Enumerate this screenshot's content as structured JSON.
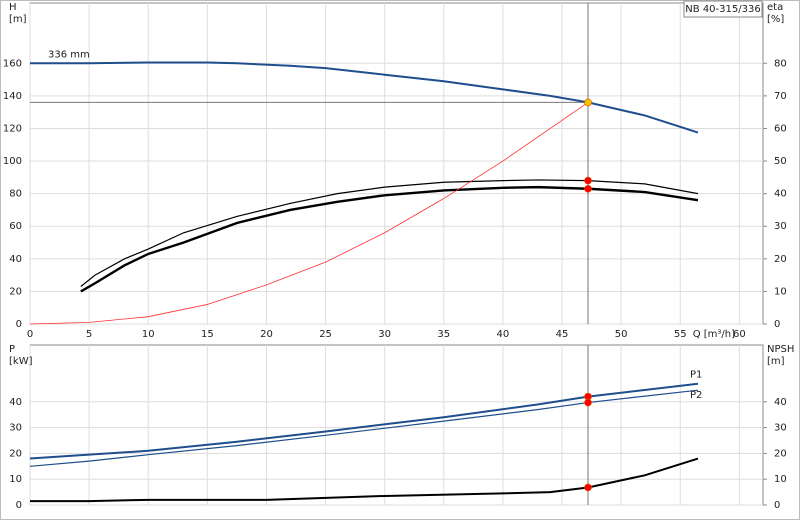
{
  "chart_data": [
    {
      "type": "line",
      "title": "NB 40-315/336",
      "xlabel": "Q [m³/h]",
      "ylabel": [
        "H",
        "[m]"
      ],
      "y2label": [
        "eta",
        "[%]"
      ],
      "xlim": [
        0,
        62
      ],
      "xticks": [
        0,
        5,
        10,
        15,
        20,
        25,
        30,
        35,
        40,
        45,
        50,
        55,
        60
      ],
      "show_xtick_labels": true,
      "ylim": [
        0,
        197
      ],
      "yticks": [
        0,
        20,
        40,
        60,
        80,
        100,
        120,
        140,
        160
      ],
      "y2lim": [
        0,
        98.5
      ],
      "y2ticks": [
        0,
        10,
        20,
        30,
        40,
        50,
        60,
        70,
        80
      ],
      "grid": true,
      "series": [
        {
          "name": "336 mm",
          "label_at": "start",
          "color": "#1f4e8c",
          "width": 2,
          "x": [
            0,
            5,
            10,
            15,
            17.5,
            22,
            25,
            30,
            35,
            40,
            44,
            47.2,
            52,
            56.5
          ],
          "values": [
            160,
            160,
            160.5,
            160.5,
            160,
            158.5,
            157,
            153,
            149,
            144,
            140,
            136,
            128,
            117.5
          ]
        },
        {
          "color": "#000000",
          "width": 1.2,
          "axis": "y2",
          "x": [
            4.3,
            5.5,
            8,
            10,
            13,
            17.5,
            22,
            26,
            30,
            35,
            40,
            43,
            47.2,
            52,
            56.5
          ],
          "values": [
            11.5,
            15,
            20,
            23,
            28,
            33,
            37,
            40,
            42,
            43.5,
            44,
            44.2,
            44,
            43,
            40
          ]
        },
        {
          "color": "#000000",
          "width": 2.4,
          "axis": "y2",
          "x": [
            4.3,
            5.5,
            8,
            10,
            13,
            17.5,
            22,
            26,
            30,
            35,
            40,
            43,
            47.2,
            52,
            56.5
          ],
          "values": [
            10,
            12.5,
            18,
            21.5,
            25,
            31,
            35,
            37.5,
            39.5,
            41,
            41.8,
            42,
            41.5,
            40.5,
            38
          ]
        },
        {
          "color": "#ff3030",
          "width": 0.8,
          "x": [
            0,
            5,
            10,
            15,
            20,
            25,
            30,
            35,
            40,
            44,
            47.2
          ],
          "values": [
            0,
            1,
            4.5,
            12,
            24,
            38,
            56,
            77,
            100,
            120,
            136
          ]
        }
      ],
      "duty_points": [
        {
          "x": 47.2,
          "y": 136,
          "color": "#f5c400",
          "crosshair": true
        },
        {
          "x": 47.2,
          "y": 44,
          "axis": "y2",
          "color": "#ff0000"
        },
        {
          "x": 47.2,
          "y": 41.5,
          "axis": "y2",
          "color": "#ff0000"
        }
      ]
    },
    {
      "type": "line",
      "ylabel": [
        "P",
        "[kW]"
      ],
      "y2label": [
        "NPSH",
        "[m]"
      ],
      "xlim": [
        0,
        62
      ],
      "xticks": [
        0,
        5,
        10,
        15,
        20,
        25,
        30,
        35,
        40,
        45,
        50,
        55,
        60
      ],
      "show_xtick_labels": false,
      "ylim": [
        0,
        62
      ],
      "yticks": [
        0,
        10,
        20,
        30,
        40
      ],
      "y2lim": [
        0,
        62
      ],
      "y2ticks": [
        0,
        10,
        20,
        30,
        40
      ],
      "grid": true,
      "series": [
        {
          "name": "P1",
          "label_at": "end",
          "color": "#1f4e8c",
          "width": 2,
          "x": [
            0,
            5,
            10,
            17.5,
            25,
            35,
            43,
            47.2,
            56.5
          ],
          "values": [
            18,
            19.5,
            21,
            24.5,
            28.5,
            34,
            39,
            42,
            47
          ]
        },
        {
          "name": "P2",
          "label_at": "end-below",
          "color": "#1f4e8c",
          "width": 1.2,
          "x": [
            0,
            5,
            10,
            17.5,
            25,
            35,
            43,
            47.2,
            56.5
          ],
          "values": [
            15,
            17,
            19.5,
            23,
            27,
            32.5,
            37,
            39.7,
            44.5
          ]
        },
        {
          "color": "#000000",
          "width": 2,
          "axis": "y2",
          "x": [
            0,
            5,
            10,
            20,
            30,
            40,
            44,
            47.2,
            52,
            56.5
          ],
          "values": [
            1.5,
            1.5,
            2,
            2,
            3.5,
            4.5,
            5,
            6.8,
            11.5,
            18
          ]
        }
      ],
      "duty_points": [
        {
          "x": 47.2,
          "y": 42,
          "color": "#ff0000",
          "vline": true
        },
        {
          "x": 47.2,
          "y": 39.7,
          "color": "#ff0000"
        },
        {
          "x": 47.2,
          "y": 6.8,
          "axis": "y2",
          "color": "#ff0000"
        }
      ]
    }
  ]
}
